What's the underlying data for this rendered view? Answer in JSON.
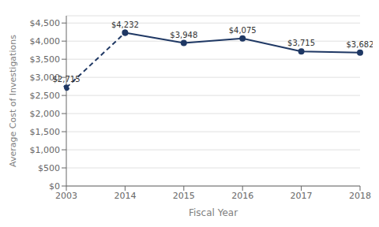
{
  "chart_data": {
    "type": "line",
    "categories": [
      "2003",
      "2014",
      "2015",
      "2016",
      "2017",
      "2018"
    ],
    "x_label": "Fiscal Year",
    "y_label": "Average Cost of Investigations",
    "ylim": [
      0,
      4700
    ],
    "yticks": [
      {
        "value": 0,
        "label": "$0"
      },
      {
        "value": 500,
        "label": "$500"
      },
      {
        "value": 1000,
        "label": "$1,000"
      },
      {
        "value": 1500,
        "label": "$1,500"
      },
      {
        "value": 2000,
        "label": "$2,000"
      },
      {
        "value": 2500,
        "label": "$2,500"
      },
      {
        "value": 3000,
        "label": "$3,000"
      },
      {
        "value": 3500,
        "label": "$3,500"
      },
      {
        "value": 4000,
        "label": "$4,000"
      },
      {
        "value": 4500,
        "label": "$4,500"
      }
    ],
    "grid": true,
    "marker": "circle",
    "data_labels": true,
    "series": [
      {
        "color": "#1f3864",
        "line_style": "dashed",
        "values": [
          2715,
          4232,
          null,
          null,
          null,
          null
        ],
        "value_labels": [
          "$2,715",
          "$4,232",
          null,
          null,
          null,
          null
        ]
      },
      {
        "color": "#1f3864",
        "line_style": "solid",
        "values": [
          null,
          4232,
          3948,
          4075,
          3715,
          3682
        ],
        "value_labels": [
          null,
          "$4,232",
          "$3,948",
          "$4,075",
          "$3,715",
          "$3,682"
        ]
      }
    ]
  }
}
